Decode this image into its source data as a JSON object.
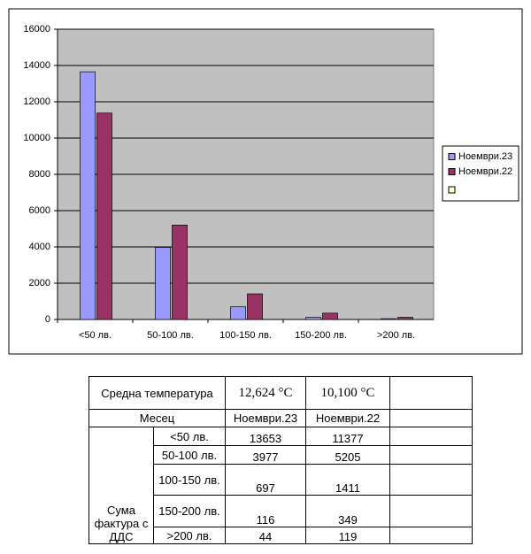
{
  "chart_data": {
    "type": "bar",
    "categories": [
      "<50 лв.",
      "50-100 лв.",
      "100-150 лв.",
      "150-200 лв.",
      ">200 лв."
    ],
    "series": [
      {
        "name": "Ноември.23",
        "color": "#9999ff",
        "values": [
          13653,
          3977,
          697,
          116,
          44
        ]
      },
      {
        "name": "Ноември.22",
        "color": "#993366",
        "values": [
          11377,
          5205,
          1411,
          349,
          119
        ]
      }
    ],
    "ylim": [
      0,
      16000
    ],
    "yticks": [
      0,
      2000,
      4000,
      6000,
      8000,
      10000,
      12000,
      14000,
      16000
    ],
    "grid": true,
    "legend": "right"
  },
  "table": {
    "temp_label": "Средна температура",
    "temps": [
      "12,624 °C",
      "10,100 °C"
    ],
    "month_label": "Месец",
    "sum_label": "Сума фактура с ДДС"
  }
}
